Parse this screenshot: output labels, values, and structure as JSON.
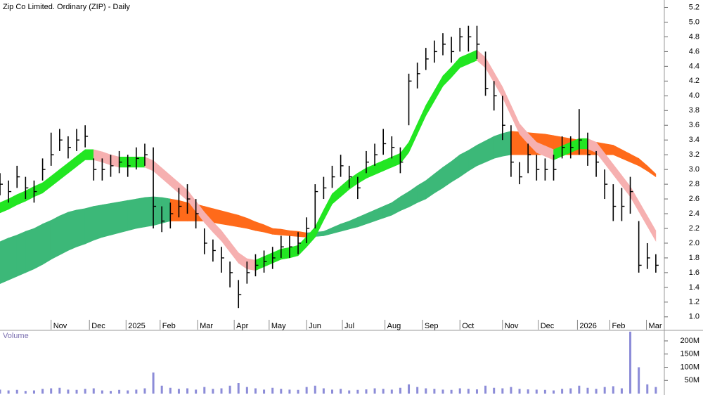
{
  "chart_data": [
    {
      "type": "ohlc",
      "title": "Zip Co Limited. Ordinary (ZIP) - Daily",
      "candle_color": "#000000",
      "high": [
        2.95,
        2.85,
        3.05,
        2.9,
        2.85,
        3.15,
        3.5,
        3.55,
        3.45,
        3.55,
        3.6,
        3.15,
        3.15,
        3.2,
        3.25,
        3.2,
        3.3,
        3.35,
        3.3,
        2.5,
        2.55,
        2.75,
        2.8,
        2.6,
        2.2,
        2.05,
        1.95,
        1.75,
        1.5,
        1.75,
        1.85,
        1.9,
        1.95,
        2.1,
        2.1,
        2.15,
        2.35,
        2.8,
        2.9,
        3.05,
        3.2,
        3.05,
        2.9,
        3.25,
        3.35,
        3.55,
        3.45,
        3.3,
        4.3,
        4.45,
        4.65,
        4.75,
        4.85,
        4.8,
        4.92,
        4.95,
        4.95,
        4.6,
        4.2,
        4.0,
        3.6,
        3.1,
        3.35,
        3.2,
        3.15,
        3.2,
        3.45,
        3.45,
        3.82,
        3.5,
        3.25,
        3.0,
        2.8,
        2.75,
        2.9,
        2.3,
        2.0,
        1.85
      ],
      "low": [
        2.65,
        2.55,
        2.75,
        2.6,
        2.55,
        2.85,
        3.05,
        3.25,
        3.15,
        3.25,
        3.3,
        2.85,
        2.85,
        2.9,
        2.95,
        2.9,
        3.0,
        3.05,
        2.2,
        2.15,
        2.2,
        2.35,
        2.4,
        2.2,
        1.85,
        1.75,
        1.6,
        1.4,
        1.12,
        1.45,
        1.55,
        1.6,
        1.65,
        1.8,
        1.8,
        1.85,
        2.0,
        2.2,
        2.6,
        2.75,
        2.9,
        2.75,
        2.6,
        2.95,
        3.05,
        3.2,
        3.15,
        2.95,
        3.6,
        4.1,
        4.35,
        4.45,
        4.55,
        4.45,
        4.6,
        4.6,
        4.5,
        4.0,
        3.8,
        3.4,
        2.9,
        2.8,
        2.95,
        2.85,
        2.85,
        2.85,
        3.15,
        3.15,
        3.2,
        3.05,
        2.9,
        2.6,
        2.3,
        2.3,
        2.4,
        1.6,
        1.65,
        1.6
      ],
      "close": [
        2.8,
        2.7,
        2.9,
        2.75,
        2.7,
        3.0,
        3.2,
        3.4,
        3.3,
        3.4,
        3.45,
        3.0,
        3.0,
        3.05,
        3.1,
        3.05,
        3.15,
        3.2,
        2.5,
        2.3,
        2.4,
        2.5,
        2.6,
        2.4,
        2.0,
        1.9,
        1.8,
        1.6,
        1.3,
        1.6,
        1.7,
        1.75,
        1.8,
        1.95,
        1.95,
        2.0,
        2.2,
        2.7,
        2.75,
        2.9,
        3.05,
        2.9,
        2.75,
        3.1,
        3.2,
        3.35,
        3.3,
        3.1,
        4.2,
        4.3,
        4.5,
        4.6,
        4.7,
        4.6,
        4.8,
        4.8,
        4.7,
        4.1,
        4.0,
        3.6,
        3.1,
        2.9,
        3.2,
        3.0,
        3.0,
        3.0,
        3.3,
        3.3,
        3.4,
        3.2,
        3.1,
        2.8,
        2.5,
        2.5,
        2.7,
        1.7,
        1.8,
        1.7
      ],
      "ribbons": [
        {
          "up_color": "#3cb878",
          "down_color": "#ff6a1a",
          "upper": [
            2.02,
            2.07,
            2.11,
            2.16,
            2.2,
            2.26,
            2.31,
            2.37,
            2.42,
            2.45,
            2.47,
            2.5,
            2.52,
            2.54,
            2.56,
            2.58,
            2.6,
            2.62,
            2.63,
            2.62,
            2.6,
            2.58,
            2.55,
            2.53,
            2.5,
            2.47,
            2.44,
            2.41,
            2.38,
            2.34,
            2.29,
            2.25,
            2.2,
            2.19,
            2.17,
            2.16,
            2.14,
            2.15,
            2.16,
            2.21,
            2.26,
            2.3,
            2.35,
            2.4,
            2.45,
            2.5,
            2.55,
            2.63,
            2.7,
            2.78,
            2.85,
            2.94,
            3.03,
            3.11,
            3.2,
            3.26,
            3.33,
            3.39,
            3.45,
            3.49,
            3.52,
            3.51,
            3.5,
            3.49,
            3.48,
            3.46,
            3.44,
            3.42,
            3.4,
            3.38,
            3.37,
            3.35,
            3.33,
            3.27,
            3.21,
            3.15,
            3.05,
            2.94
          ],
          "lower": [
            1.45,
            1.5,
            1.55,
            1.6,
            1.65,
            1.71,
            1.78,
            1.84,
            1.9,
            1.95,
            1.99,
            2.04,
            2.08,
            2.11,
            2.14,
            2.17,
            2.2,
            2.22,
            2.24,
            2.27,
            2.3,
            2.3,
            2.3,
            2.3,
            2.3,
            2.28,
            2.26,
            2.24,
            2.22,
            2.2,
            2.17,
            2.15,
            2.12,
            2.11,
            2.1,
            2.09,
            2.08,
            2.09,
            2.1,
            2.13,
            2.16,
            2.19,
            2.22,
            2.26,
            2.3,
            2.34,
            2.38,
            2.44,
            2.49,
            2.55,
            2.6,
            2.68,
            2.75,
            2.83,
            2.9,
            2.98,
            3.05,
            3.1,
            3.15,
            3.18,
            3.2,
            3.2,
            3.2,
            3.2,
            3.2,
            3.2,
            3.2,
            3.2,
            3.2,
            3.2,
            3.2,
            3.2,
            3.2,
            3.15,
            3.1,
            3.05,
            2.98,
            2.9
          ]
        },
        {
          "up_color": "#22e622",
          "down_color": "#f6b0b0",
          "upper": [
            2.55,
            2.6,
            2.66,
            2.71,
            2.77,
            2.82,
            2.91,
            3.0,
            3.09,
            3.18,
            3.27,
            3.27,
            3.24,
            3.2,
            3.17,
            3.17,
            3.17,
            3.17,
            3.12,
            3.02,
            2.92,
            2.82,
            2.72,
            2.57,
            2.42,
            2.29,
            2.17,
            2.02,
            1.87,
            1.79,
            1.77,
            1.82,
            1.87,
            1.92,
            1.94,
            1.97,
            2.09,
            2.22,
            2.45,
            2.67,
            2.77,
            2.87,
            2.95,
            3.02,
            3.07,
            3.12,
            3.17,
            3.22,
            3.37,
            3.62,
            3.87,
            4.07,
            4.27,
            4.39,
            4.52,
            4.57,
            4.62,
            4.52,
            4.32,
            4.12,
            3.87,
            3.62,
            3.49,
            3.37,
            3.32,
            3.27,
            3.32,
            3.37,
            3.42,
            3.42,
            3.37,
            3.22,
            3.07,
            2.92,
            2.77,
            2.57,
            2.37,
            2.17
          ],
          "lower": [
            2.41,
            2.46,
            2.52,
            2.57,
            2.63,
            2.68,
            2.77,
            2.86,
            2.95,
            3.04,
            3.13,
            3.13,
            3.1,
            3.06,
            3.03,
            3.03,
            3.03,
            3.03,
            2.98,
            2.88,
            2.78,
            2.68,
            2.58,
            2.43,
            2.28,
            2.15,
            2.03,
            1.88,
            1.73,
            1.65,
            1.63,
            1.68,
            1.73,
            1.78,
            1.8,
            1.83,
            1.95,
            2.08,
            2.31,
            2.53,
            2.63,
            2.73,
            2.81,
            2.88,
            2.93,
            2.98,
            3.03,
            3.08,
            3.23,
            3.48,
            3.73,
            3.93,
            4.13,
            4.25,
            4.38,
            4.43,
            4.48,
            4.38,
            4.18,
            3.98,
            3.73,
            3.48,
            3.35,
            3.23,
            3.18,
            3.13,
            3.18,
            3.23,
            3.28,
            3.28,
            3.23,
            3.08,
            2.93,
            2.78,
            2.63,
            2.43,
            2.23,
            2.03
          ]
        }
      ],
      "xlim": [
        0,
        78
      ],
      "xticks": [
        {
          "value": 6,
          "label": "Nov"
        },
        {
          "value": 10.5,
          "label": "Dec"
        },
        {
          "value": 14.8,
          "label": "2025"
        },
        {
          "value": 18.8,
          "label": "Feb"
        },
        {
          "value": 23.2,
          "label": "Mar"
        },
        {
          "value": 27.5,
          "label": "Apr"
        },
        {
          "value": 31.6,
          "label": "May"
        },
        {
          "value": 36,
          "label": "Jun"
        },
        {
          "value": 40.2,
          "label": "Jul"
        },
        {
          "value": 45.2,
          "label": "Aug"
        },
        {
          "value": 49.6,
          "label": "Sep"
        },
        {
          "value": 54,
          "label": "Oct"
        },
        {
          "value": 59,
          "label": "Nov"
        },
        {
          "value": 63.2,
          "label": "Dec"
        },
        {
          "value": 67.8,
          "label": "2026"
        },
        {
          "value": 71.6,
          "label": "Feb"
        },
        {
          "value": 75.9,
          "label": "Mar"
        }
      ],
      "ylim": [
        0.96,
        5.3
      ],
      "yticks": [
        {
          "value": 1,
          "label": "1.0"
        },
        1.2,
        1.4,
        1.6,
        1.8,
        {
          "value": 2,
          "label": "2.0"
        },
        2.2,
        2.4,
        2.6,
        2.8,
        {
          "value": 3,
          "label": "3.0"
        },
        3.2,
        3.4,
        3.6,
        3.8,
        {
          "value": 4,
          "label": "4.0"
        },
        4.2,
        4.4,
        4.6,
        4.8,
        {
          "value": 5,
          "label": "5.0"
        },
        5.2
      ]
    },
    {
      "type": "bar",
      "title": "Volume",
      "color": "#8c8cd8",
      "values": [
        15,
        12,
        14,
        10,
        12,
        18,
        20,
        22,
        15,
        14,
        18,
        20,
        12,
        10,
        14,
        12,
        15,
        20,
        80,
        30,
        22,
        18,
        20,
        15,
        25,
        18,
        20,
        30,
        40,
        25,
        20,
        15,
        22,
        18,
        15,
        14,
        25,
        30,
        20,
        15,
        18,
        12,
        14,
        16,
        20,
        18,
        15,
        22,
        35,
        25,
        20,
        18,
        15,
        14,
        20,
        18,
        16,
        30,
        22,
        20,
        25,
        18,
        16,
        15,
        14,
        12,
        18,
        20,
        30,
        22,
        18,
        25,
        28,
        20,
        235,
        100,
        35,
        25
      ],
      "ylim": [
        0,
        240
      ],
      "yticks": [
        {
          "value": 50,
          "label": "50M"
        },
        {
          "value": 100,
          "label": "100M"
        },
        {
          "value": 150,
          "label": "150M"
        },
        {
          "value": 200,
          "label": "200M"
        }
      ]
    }
  ]
}
